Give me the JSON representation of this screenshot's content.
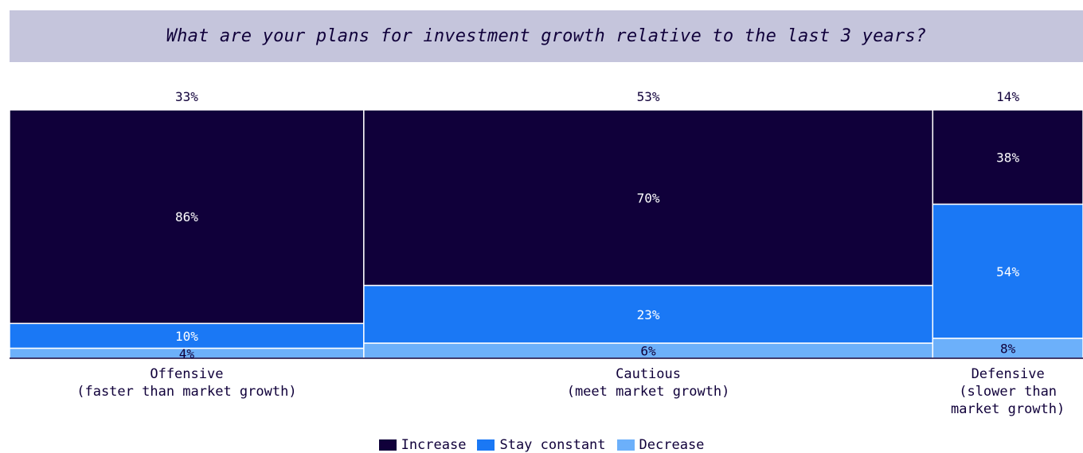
{
  "colors": {
    "increase": "#10003a",
    "stay_constant": "#1a78f5",
    "decrease": "#6cb0fa",
    "title_band": "#c5c5dc",
    "text_dark": "#10003a",
    "text_light": "#ffffff"
  },
  "chart_data": {
    "type": "mekko",
    "title": "What are your plans for investment growth relative to the last 3 years?",
    "columns": [
      {
        "label_lines": [
          "Offensive",
          "(faster than market growth)"
        ],
        "width_pct": 33,
        "width_label": "33%",
        "segments": [
          {
            "name": "Increase",
            "value": 86,
            "label": "86%"
          },
          {
            "name": "Stay constant",
            "value": 10,
            "label": "10%"
          },
          {
            "name": "Decrease",
            "value": 4,
            "label": "4%"
          }
        ]
      },
      {
        "label_lines": [
          "Cautious",
          "(meet market growth)"
        ],
        "width_pct": 53,
        "width_label": "53%",
        "segments": [
          {
            "name": "Increase",
            "value": 70,
            "label": "70%"
          },
          {
            "name": "Stay constant",
            "value": 23,
            "label": "23%"
          },
          {
            "name": "Decrease",
            "value": 6,
            "label": "6%"
          }
        ]
      },
      {
        "label_lines": [
          "Defensive",
          "(slower than",
          "market growth)"
        ],
        "width_pct": 14,
        "width_label": "14%",
        "segments": [
          {
            "name": "Increase",
            "value": 38,
            "label": "38%"
          },
          {
            "name": "Stay constant",
            "value": 54,
            "label": "54%"
          },
          {
            "name": "Decrease",
            "value": 8,
            "label": "8%"
          }
        ]
      }
    ],
    "legend": [
      {
        "name": "Increase",
        "color_key": "increase"
      },
      {
        "name": "Stay constant",
        "color_key": "stay_constant"
      },
      {
        "name": "Decrease",
        "color_key": "decrease"
      }
    ],
    "legend_position": "bottom-center"
  }
}
